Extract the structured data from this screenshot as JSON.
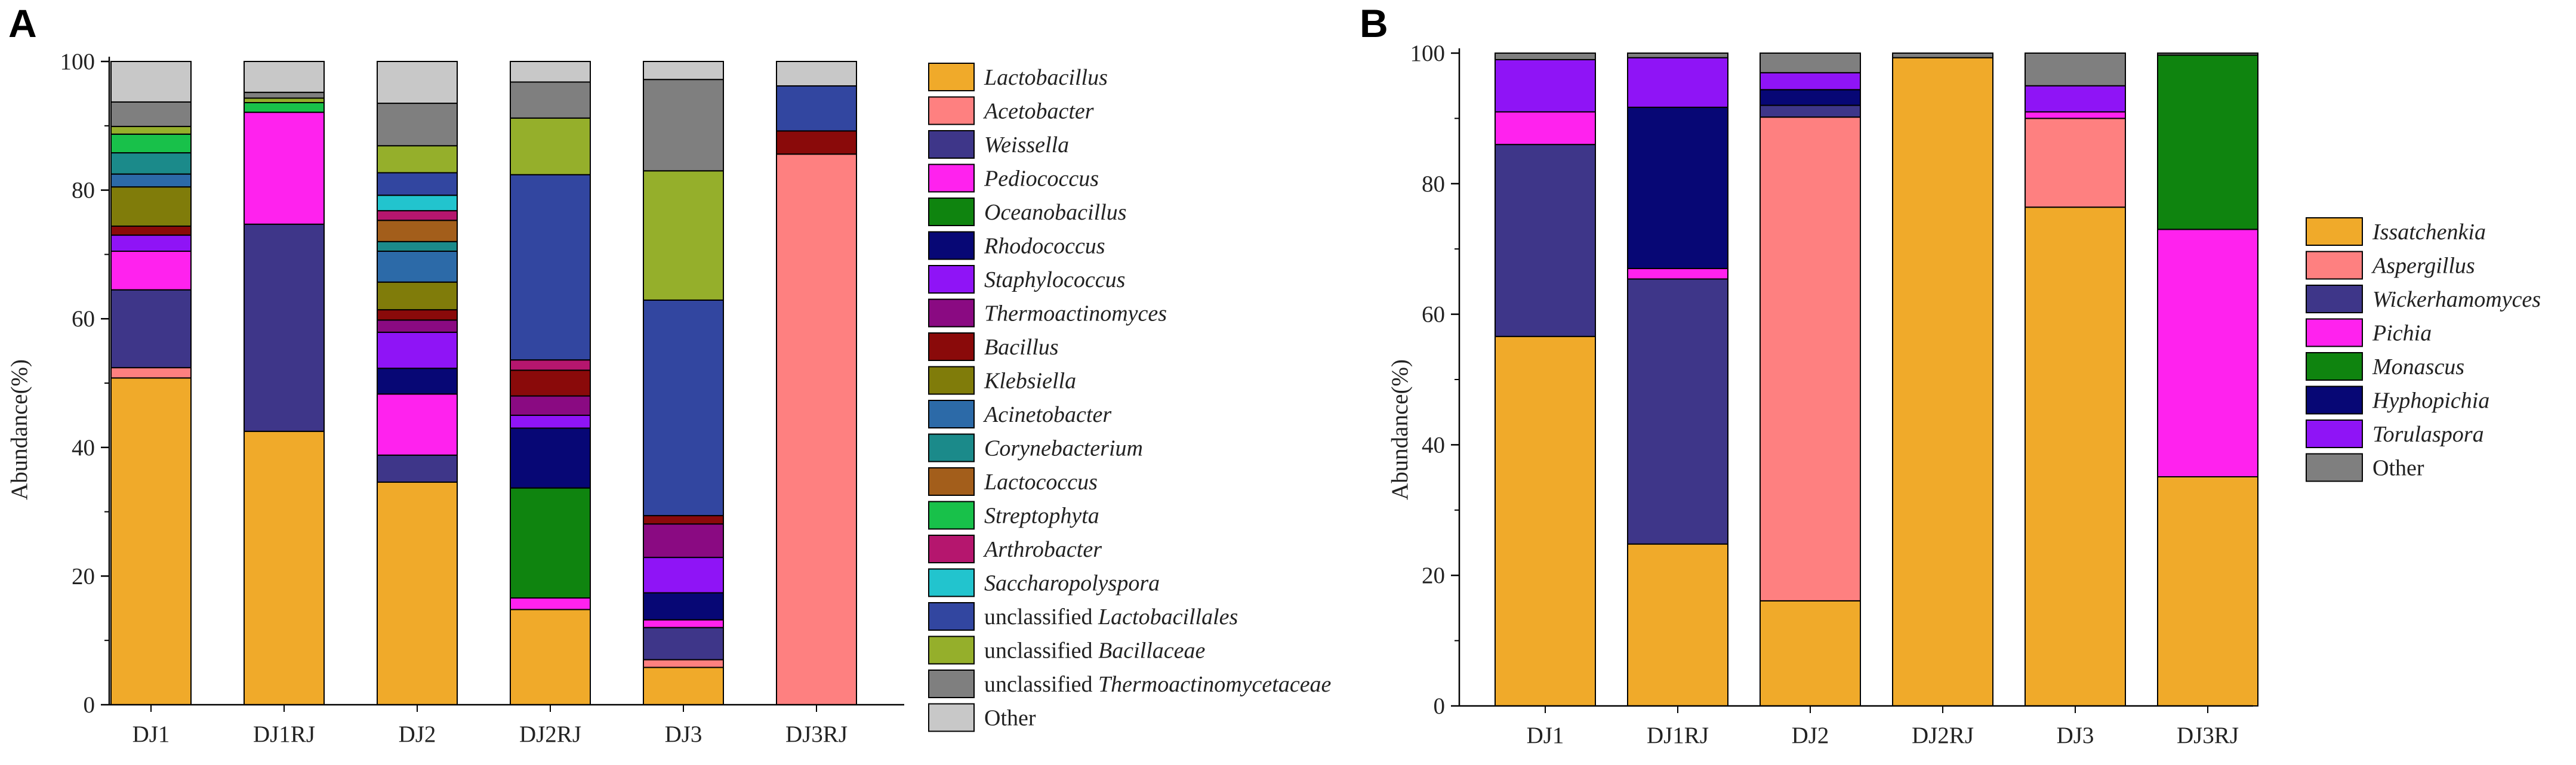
{
  "panels": [
    {
      "label": "A",
      "chart_data": {
        "type": "stacked-bar",
        "ylabel": "Abundance(%)",
        "xlabel": "",
        "ylim": [
          0,
          100
        ],
        "yticks": [
          "0",
          "20",
          "40",
          "60",
          "80",
          "100"
        ],
        "grid": false,
        "legend_position": "right",
        "categories": [
          "DJ1",
          "DJ1RJ",
          "DJ2",
          "DJ2RJ",
          "DJ3",
          "DJ3RJ"
        ],
        "series": [
          {
            "name": "Lactobacillus",
            "prefix": "",
            "italic": "Lactobacillus",
            "color": "#F0AA2A",
            "values": [
              50.8,
              42.5,
              34.6,
              14.8,
              5.8,
              0.0
            ]
          },
          {
            "name": "Acetobacter",
            "prefix": "",
            "italic": "Acetobacter",
            "color": "#FE8080",
            "values": [
              1.6,
              0.0,
              0.0,
              0.0,
              1.2,
              85.6
            ]
          },
          {
            "name": "Weissella",
            "prefix": "",
            "italic": "Weissella",
            "color": "#3E3689",
            "values": [
              12.1,
              32.2,
              4.2,
              0.0,
              5.0,
              0.0
            ]
          },
          {
            "name": "Pediococcus",
            "prefix": "",
            "italic": "Pediococcus",
            "color": "#FF22EE",
            "values": [
              6.0,
              17.4,
              9.5,
              1.8,
              1.2,
              0.0
            ]
          },
          {
            "name": "Oceanobacillus",
            "prefix": "",
            "italic": "Oceanobacillus",
            "color": "#0F840F",
            "values": [
              0.0,
              0.0,
              0.0,
              17.1,
              0.0,
              0.0
            ]
          },
          {
            "name": "Rhodococcus",
            "prefix": "",
            "italic": "Rhodococcus",
            "color": "#070775",
            "values": [
              0.0,
              0.0,
              4.0,
              9.3,
              4.2,
              0.0
            ]
          },
          {
            "name": "Staphylococcus",
            "prefix": "",
            "italic": "Staphylococcus",
            "color": "#8F14F6",
            "values": [
              2.5,
              0.0,
              5.6,
              2.0,
              5.5,
              0.0
            ]
          },
          {
            "name": "Thermoactinomyces",
            "prefix": "",
            "italic": "Thermoactinomyces",
            "color": "#8A0A82",
            "values": [
              0.0,
              0.0,
              1.9,
              3.0,
              5.2,
              0.0
            ]
          },
          {
            "name": "Bacillus",
            "prefix": "",
            "italic": "Bacillus",
            "color": "#8A0A0A",
            "values": [
              1.4,
              0.0,
              1.6,
              4.0,
              1.3,
              3.6
            ]
          },
          {
            "name": "Klebsiella",
            "prefix": "",
            "italic": "Klebsiella",
            "color": "#807C0A",
            "values": [
              6.1,
              0.0,
              4.3,
              0.0,
              0.0,
              0.0
            ]
          },
          {
            "name": "Acinetobacter",
            "prefix": "",
            "italic": "Acinetobacter",
            "color": "#2C6AA8",
            "values": [
              2.0,
              0.0,
              4.8,
              0.0,
              0.0,
              0.0
            ]
          },
          {
            "name": "Corynebacterium",
            "prefix": "",
            "italic": "Corynebacterium",
            "color": "#1B8A8A",
            "values": [
              3.3,
              0.0,
              1.5,
              0.0,
              0.0,
              0.0
            ]
          },
          {
            "name": "Lactococcus",
            "prefix": "",
            "italic": "Lactococcus",
            "color": "#A35E1B",
            "values": [
              0.0,
              0.0,
              3.3,
              0.0,
              0.0,
              0.0
            ]
          },
          {
            "name": "Streptophyta",
            "prefix": "",
            "italic": "Streptophyta",
            "color": "#18C14A",
            "values": [
              2.9,
              1.5,
              0.0,
              0.0,
              0.0,
              0.0
            ]
          },
          {
            "name": "Arthrobacter",
            "prefix": "",
            "italic": "Arthrobacter",
            "color": "#B5166E",
            "values": [
              0.0,
              0.0,
              1.5,
              1.6,
              0.0,
              0.0
            ]
          },
          {
            "name": "Saccharopolyspora",
            "prefix": "",
            "italic": "Saccharopolyspora",
            "color": "#22C4CE",
            "values": [
              0.0,
              0.0,
              2.4,
              0.0,
              0.0,
              0.0
            ]
          },
          {
            "name": "unclassified Lactobacillales",
            "prefix": "unclassified ",
            "italic": "Lactobacillales",
            "color": "#3246A0",
            "values": [
              0.0,
              0.0,
              3.5,
              28.8,
              33.5,
              7.0
            ]
          },
          {
            "name": "unclassified Bacillaceae",
            "prefix": "unclassified ",
            "italic": "Bacillaceae",
            "color": "#95AF2B",
            "values": [
              1.2,
              0.7,
              4.2,
              8.8,
              20.1,
              0.0
            ]
          },
          {
            "name": "unclassified Thermoactinomycetaceae",
            "prefix": "unclassified ",
            "italic": "Thermoactinomycetaceae",
            "color": "#7F7F7F",
            "values": [
              3.8,
              0.9,
              6.6,
              5.6,
              14.2,
              0.0
            ]
          },
          {
            "name": "Other",
            "prefix": "Other",
            "italic": "",
            "color": "#C8C8C8",
            "values": [
              6.3,
              4.8,
              6.5,
              3.2,
              2.8,
              3.8
            ]
          }
        ]
      }
    },
    {
      "label": "B",
      "chart_data": {
        "type": "stacked-bar",
        "ylabel": "Abundance(%)",
        "xlabel": "",
        "ylim": [
          0,
          100
        ],
        "yticks": [
          "0",
          "20",
          "40",
          "60",
          "80",
          "100"
        ],
        "grid": false,
        "legend_position": "right",
        "categories": [
          "DJ1",
          "DJ1RJ",
          "DJ2",
          "DJ2RJ",
          "DJ3",
          "DJ3RJ"
        ],
        "series": [
          {
            "name": "Issatchenkia",
            "prefix": "",
            "italic": "Issatchenkia",
            "color": "#F0AA2A",
            "values": [
              56.6,
              24.8,
              16.1,
              99.3,
              76.4,
              35.1
            ]
          },
          {
            "name": "Aspergillus",
            "prefix": "",
            "italic": "Aspergillus",
            "color": "#FE8080",
            "values": [
              0.0,
              0.0,
              74.1,
              0.0,
              13.6,
              0.0
            ]
          },
          {
            "name": "Wickerhamomyces",
            "prefix": "",
            "italic": "Wickerhamomyces",
            "color": "#3E3689",
            "values": [
              29.4,
              40.6,
              1.8,
              0.0,
              0.0,
              0.0
            ]
          },
          {
            "name": "Pichia",
            "prefix": "",
            "italic": "Pichia",
            "color": "#FF22EE",
            "values": [
              5.0,
              1.6,
              0.0,
              0.0,
              1.0,
              37.9
            ]
          },
          {
            "name": "Monascus",
            "prefix": "",
            "italic": "Monascus",
            "color": "#0F840F",
            "values": [
              0.0,
              0.0,
              0.0,
              0.0,
              0.0,
              26.7
            ]
          },
          {
            "name": "Hyphopichia",
            "prefix": "",
            "italic": "Hyphopichia",
            "color": "#070775",
            "values": [
              0.0,
              24.7,
              2.4,
              0.0,
              0.0,
              0.0
            ]
          },
          {
            "name": "Torulaspora",
            "prefix": "",
            "italic": "Torulaspora",
            "color": "#8F14F6",
            "values": [
              8.0,
              7.6,
              2.6,
              0.0,
              4.0,
              0.0
            ]
          },
          {
            "name": "Other",
            "prefix": "Other",
            "italic": "",
            "color": "#7F7F7F",
            "values": [
              1.0,
              0.7,
              3.0,
              0.7,
              5.0,
              0.3
            ]
          }
        ]
      }
    }
  ]
}
